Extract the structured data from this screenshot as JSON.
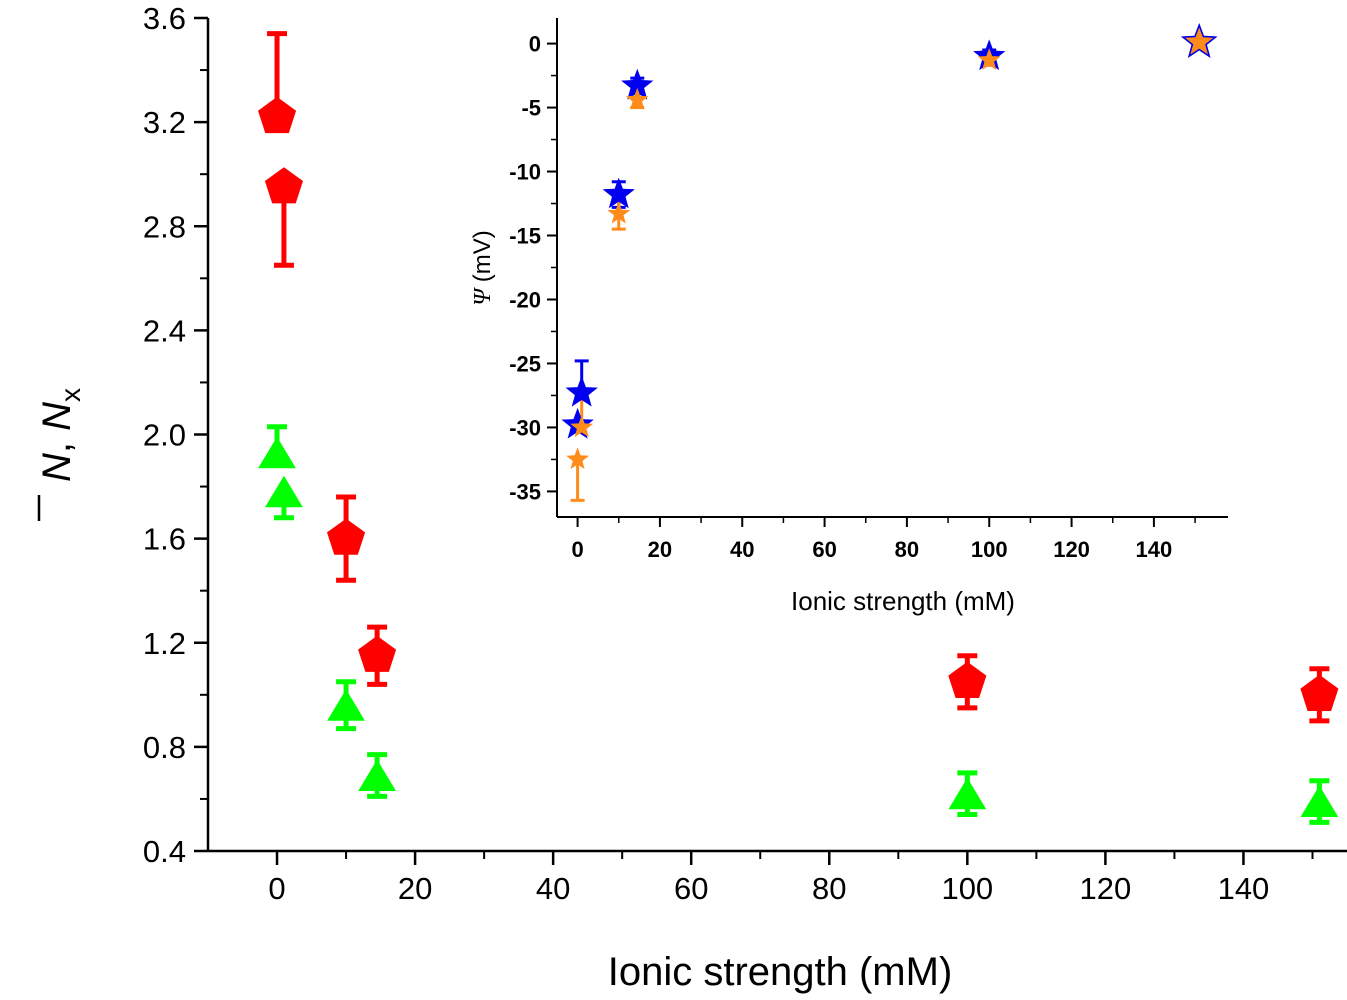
{
  "chart_data": [
    {
      "type": "scatter",
      "title": "",
      "xlabel": "Ionic strength (mM)",
      "ylabel": {
        "symbol1": "N",
        "sep": ", ",
        "symbol2": "N",
        "subscript": "x"
      },
      "xlim": [
        -10,
        155
      ],
      "ylim": [
        0.4,
        3.6
      ],
      "xticks": [
        0,
        20,
        40,
        60,
        80,
        100,
        120,
        140
      ],
      "yticks": [
        0.4,
        0.8,
        1.2,
        1.6,
        2.0,
        2.4,
        2.8,
        3.2,
        3.6
      ],
      "ytick_labels": [
        "0.4",
        "0.8",
        "1.2",
        "1.6",
        "2.0",
        "2.4",
        "2.8",
        "3.2",
        "3.6"
      ],
      "series": [
        {
          "name": "N-bar",
          "marker": "pentagon",
          "color": "#ff0000",
          "points": [
            {
              "x": 0,
              "y": 3.22,
              "err_up": 0.32,
              "err_down": 0
            },
            {
              "x": 1,
              "y": 2.95,
              "err_up": 0,
              "err_down": 0.3
            },
            {
              "x": 10,
              "y": 1.6,
              "err_up": 0.16,
              "err_down": 0.16
            },
            {
              "x": 14.5,
              "y": 1.15,
              "err_up": 0.11,
              "err_down": 0.11
            },
            {
              "x": 100,
              "y": 1.05,
              "err_up": 0.1,
              "err_down": 0.1
            },
            {
              "x": 151,
              "y": 1.0,
              "err_up": 0.1,
              "err_down": 0.1
            }
          ]
        },
        {
          "name": "N_x",
          "marker": "triangle",
          "color": "#00ff00",
          "points": [
            {
              "x": 0,
              "y": 1.93,
              "err_up": 0.1,
              "err_down": 0
            },
            {
              "x": 1,
              "y": 1.78,
              "err_up": 0,
              "err_down": 0.1
            },
            {
              "x": 10,
              "y": 0.96,
              "err_up": 0.09,
              "err_down": 0.09
            },
            {
              "x": 14.5,
              "y": 0.69,
              "err_up": 0.08,
              "err_down": 0.08
            },
            {
              "x": 100,
              "y": 0.62,
              "err_up": 0.08,
              "err_down": 0.08
            },
            {
              "x": 151,
              "y": 0.59,
              "err_up": 0.08,
              "err_down": 0.08
            }
          ]
        }
      ]
    },
    {
      "type": "scatter",
      "title": "",
      "xlabel": "Ionic strength (mM)",
      "ylabel": {
        "symbol": "Ψ",
        "unit": " (mV)"
      },
      "xlim": [
        -5,
        158
      ],
      "ylim": [
        -37,
        2
      ],
      "xticks": [
        0,
        20,
        40,
        60,
        80,
        100,
        120,
        140
      ],
      "yticks": [
        -35,
        -30,
        -25,
        -20,
        -15,
        -10,
        -5,
        0
      ],
      "series": [
        {
          "name": "Psi-blue",
          "marker": "star",
          "color": "#0000ee",
          "points": [
            {
              "x": 0,
              "y": -29.8,
              "err_up": 0,
              "err_down": 0
            },
            {
              "x": 1,
              "y": -27.3,
              "err_up": 2.5,
              "err_down": 0
            },
            {
              "x": 10,
              "y": -11.8,
              "err_up": 1.0,
              "err_down": 1.0
            },
            {
              "x": 14.5,
              "y": -3.3,
              "err_up": 0.6,
              "err_down": 0.6
            },
            {
              "x": 100,
              "y": -1.0,
              "err_up": 0.5,
              "err_down": 0.5
            },
            {
              "x": 151,
              "y": 0.1,
              "err_up": 0,
              "err_down": 0
            }
          ]
        },
        {
          "name": "Psi-orange",
          "marker": "star",
          "color": "#ff8c1a",
          "points": [
            {
              "x": 0,
              "y": -32.5,
              "err_up": 0,
              "err_down": 3.2
            },
            {
              "x": 1,
              "y": -30.0,
              "err_up": 2.7,
              "err_down": 0
            },
            {
              "x": 10,
              "y": -13.3,
              "err_up": 1.2,
              "err_down": 1.2
            },
            {
              "x": 14.5,
              "y": -4.4,
              "err_up": 0.6,
              "err_down": 0.6
            },
            {
              "x": 100,
              "y": -1.3,
              "err_up": 0.4,
              "err_down": 0.4
            },
            {
              "x": 151,
              "y": 0.1,
              "err_up": 0,
              "err_down": 0
            }
          ]
        }
      ]
    }
  ]
}
